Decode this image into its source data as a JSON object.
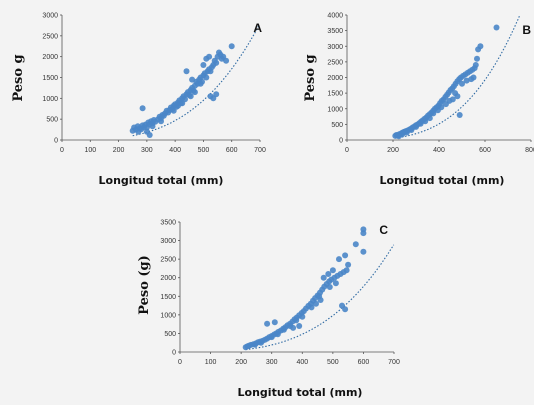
{
  "colors": {
    "marker": "#4a86c8",
    "trendline": "#2f6aa3",
    "background": "#f3f3f3"
  },
  "chart_data": [
    {
      "type": "scatter",
      "panel_label": "A",
      "xlabel": "Longitud total (mm)",
      "ylabel": "Peso g",
      "xlim": [
        0,
        700
      ],
      "ylim": [
        0,
        3000
      ],
      "xticks": [
        0,
        100,
        200,
        300,
        400,
        500,
        600,
        700
      ],
      "yticks": [
        0,
        500,
        1000,
        1500,
        2000,
        2500,
        3000
      ],
      "grid": false,
      "trendline": {
        "type": "power",
        "a": 2.2e-06,
        "b": 3.2
      },
      "points": [
        [
          250,
          220
        ],
        [
          255,
          300
        ],
        [
          262,
          250
        ],
        [
          268,
          330
        ],
        [
          270,
          200
        ],
        [
          275,
          280
        ],
        [
          280,
          260
        ],
        [
          285,
          350
        ],
        [
          290,
          310
        ],
        [
          295,
          370
        ],
        [
          285,
          760
        ],
        [
          300,
          300
        ],
        [
          305,
          420
        ],
        [
          310,
          380
        ],
        [
          315,
          450
        ],
        [
          320,
          400
        ],
        [
          325,
          480
        ],
        [
          330,
          440
        ],
        [
          340,
          500
        ],
        [
          345,
          560
        ],
        [
          350,
          520
        ],
        [
          355,
          600
        ],
        [
          360,
          580
        ],
        [
          365,
          640
        ],
        [
          370,
          700
        ],
        [
          375,
          660
        ],
        [
          380,
          720
        ],
        [
          385,
          780
        ],
        [
          390,
          740
        ],
        [
          395,
          820
        ],
        [
          400,
          860
        ],
        [
          405,
          800
        ],
        [
          410,
          900
        ],
        [
          415,
          950
        ],
        [
          420,
          880
        ],
        [
          425,
          1000
        ],
        [
          430,
          1050
        ],
        [
          435,
          980
        ],
        [
          440,
          1100
        ],
        [
          445,
          1150
        ],
        [
          450,
          1080
        ],
        [
          455,
          1200
        ],
        [
          460,
          1250
        ],
        [
          465,
          1180
        ],
        [
          470,
          1300
        ],
        [
          475,
          1400
        ],
        [
          480,
          1350
        ],
        [
          485,
          1450
        ],
        [
          490,
          1500
        ],
        [
          495,
          1400
        ],
        [
          500,
          1550
        ],
        [
          505,
          1600
        ],
        [
          510,
          1500
        ],
        [
          515,
          1650
        ],
        [
          520,
          1700
        ],
        [
          525,
          1650
        ],
        [
          530,
          1750
        ],
        [
          535,
          1800
        ],
        [
          540,
          1900
        ],
        [
          545,
          1850
        ],
        [
          550,
          2000
        ],
        [
          555,
          2100
        ],
        [
          560,
          2050
        ],
        [
          565,
          1950
        ],
        [
          500,
          1800
        ],
        [
          510,
          1950
        ],
        [
          520,
          2000
        ],
        [
          440,
          1650
        ],
        [
          460,
          1450
        ],
        [
          525,
          1050
        ],
        [
          535,
          1000
        ],
        [
          545,
          1100
        ],
        [
          600,
          2250
        ],
        [
          580,
          1900
        ],
        [
          570,
          2000
        ],
        [
          490,
          1350
        ],
        [
          470,
          1150
        ],
        [
          455,
          1050
        ],
        [
          425,
          880
        ],
        [
          410,
          820
        ],
        [
          395,
          700
        ],
        [
          350,
          450
        ],
        [
          320,
          330
        ],
        [
          300,
          200
        ],
        [
          310,
          120
        ]
      ]
    },
    {
      "type": "scatter",
      "panel_label": "B",
      "xlabel": "Longitud total (mm)",
      "ylabel": "Peso g",
      "xlim": [
        0,
        800
      ],
      "ylim": [
        0,
        4000
      ],
      "xticks": [
        0,
        200,
        400,
        600,
        800
      ],
      "yticks": [
        0,
        500,
        1000,
        1500,
        2000,
        2500,
        3000,
        3500,
        4000
      ],
      "grid": false,
      "trendline": {
        "type": "power",
        "a": 1.8e-06,
        "b": 3.25
      },
      "points": [
        [
          210,
          130
        ],
        [
          215,
          160
        ],
        [
          220,
          150
        ],
        [
          228,
          190
        ],
        [
          235,
          200
        ],
        [
          240,
          230
        ],
        [
          248,
          260
        ],
        [
          255,
          280
        ],
        [
          262,
          300
        ],
        [
          270,
          330
        ],
        [
          278,
          360
        ],
        [
          285,
          400
        ],
        [
          292,
          430
        ],
        [
          300,
          470
        ],
        [
          308,
          500
        ],
        [
          315,
          540
        ],
        [
          322,
          590
        ],
        [
          330,
          630
        ],
        [
          338,
          680
        ],
        [
          345,
          720
        ],
        [
          352,
          780
        ],
        [
          360,
          830
        ],
        [
          368,
          880
        ],
        [
          375,
          940
        ],
        [
          382,
          1000
        ],
        [
          390,
          1050
        ],
        [
          398,
          1100
        ],
        [
          405,
          1180
        ],
        [
          412,
          1250
        ],
        [
          420,
          1300
        ],
        [
          428,
          1380
        ],
        [
          435,
          1450
        ],
        [
          442,
          1520
        ],
        [
          450,
          1600
        ],
        [
          458,
          1650
        ],
        [
          465,
          1720
        ],
        [
          472,
          1800
        ],
        [
          480,
          1880
        ],
        [
          488,
          1950
        ],
        [
          495,
          2000
        ],
        [
          505,
          2050
        ],
        [
          515,
          2100
        ],
        [
          525,
          2150
        ],
        [
          535,
          2200
        ],
        [
          545,
          2250
        ],
        [
          555,
          2300
        ],
        [
          560,
          2400
        ],
        [
          565,
          2600
        ],
        [
          570,
          2900
        ],
        [
          470,
          1500
        ],
        [
          480,
          1400
        ],
        [
          490,
          800
        ],
        [
          460,
          1300
        ],
        [
          445,
          1250
        ],
        [
          500,
          1800
        ],
        [
          520,
          1900
        ],
        [
          540,
          1950
        ],
        [
          550,
          2000
        ],
        [
          580,
          3000
        ],
        [
          650,
          3600
        ],
        [
          430,
          1150
        ],
        [
          410,
          1050
        ],
        [
          395,
          950
        ],
        [
          375,
          850
        ],
        [
          360,
          700
        ],
        [
          340,
          600
        ],
        [
          320,
          520
        ],
        [
          300,
          420
        ],
        [
          280,
          320
        ],
        [
          260,
          240
        ],
        [
          240,
          180
        ],
        [
          225,
          120
        ]
      ]
    },
    {
      "type": "scatter",
      "panel_label": "C",
      "xlabel": "Longitud total (mm)",
      "ylabel": "Peso (g)",
      "xlim": [
        0,
        700
      ],
      "ylim": [
        0,
        3500
      ],
      "xticks": [
        0,
        100,
        200,
        300,
        400,
        500,
        600,
        700
      ],
      "yticks": [
        0,
        500,
        1000,
        1500,
        2000,
        2500,
        3000,
        3500
      ],
      "grid": false,
      "trendline": {
        "type": "power",
        "a": 2e-06,
        "b": 3.22
      },
      "points": [
        [
          215,
          130
        ],
        [
          220,
          150
        ],
        [
          225,
          170
        ],
        [
          232,
          190
        ],
        [
          240,
          210
        ],
        [
          248,
          230
        ],
        [
          255,
          260
        ],
        [
          262,
          280
        ],
        [
          270,
          300
        ],
        [
          278,
          330
        ],
        [
          285,
          360
        ],
        [
          292,
          400
        ],
        [
          300,
          430
        ],
        [
          308,
          470
        ],
        [
          315,
          500
        ],
        [
          322,
          540
        ],
        [
          330,
          580
        ],
        [
          338,
          630
        ],
        [
          345,
          670
        ],
        [
          352,
          720
        ],
        [
          360,
          760
        ],
        [
          368,
          820
        ],
        [
          375,
          880
        ],
        [
          382,
          930
        ],
        [
          390,
          990
        ],
        [
          398,
          1050
        ],
        [
          405,
          1100
        ],
        [
          412,
          1170
        ],
        [
          420,
          1240
        ],
        [
          428,
          1300
        ],
        [
          435,
          1380
        ],
        [
          442,
          1450
        ],
        [
          450,
          1520
        ],
        [
          458,
          1600
        ],
        [
          465,
          1680
        ],
        [
          472,
          1760
        ],
        [
          480,
          1830
        ],
        [
          488,
          1900
        ],
        [
          495,
          1950
        ],
        [
          505,
          2000
        ],
        [
          515,
          2050
        ],
        [
          525,
          2100
        ],
        [
          535,
          2150
        ],
        [
          545,
          2200
        ],
        [
          520,
          2500
        ],
        [
          540,
          2600
        ],
        [
          550,
          2350
        ],
        [
          470,
          2000
        ],
        [
          485,
          2100
        ],
        [
          500,
          2200
        ],
        [
          430,
          1200
        ],
        [
          445,
          1300
        ],
        [
          460,
          1400
        ],
        [
          400,
          950
        ],
        [
          380,
          850
        ],
        [
          360,
          700
        ],
        [
          340,
          600
        ],
        [
          320,
          480
        ],
        [
          300,
          400
        ],
        [
          285,
          760
        ],
        [
          310,
          800
        ],
        [
          370,
          650
        ],
        [
          390,
          700
        ],
        [
          540,
          1150
        ],
        [
          530,
          1250
        ],
        [
          600,
          3200
        ],
        [
          600,
          3300
        ],
        [
          600,
          2700
        ],
        [
          575,
          2900
        ],
        [
          490,
          1750
        ],
        [
          510,
          1850
        ],
        [
          455,
          1500
        ],
        [
          265,
          250
        ],
        [
          245,
          200
        ]
      ]
    }
  ]
}
